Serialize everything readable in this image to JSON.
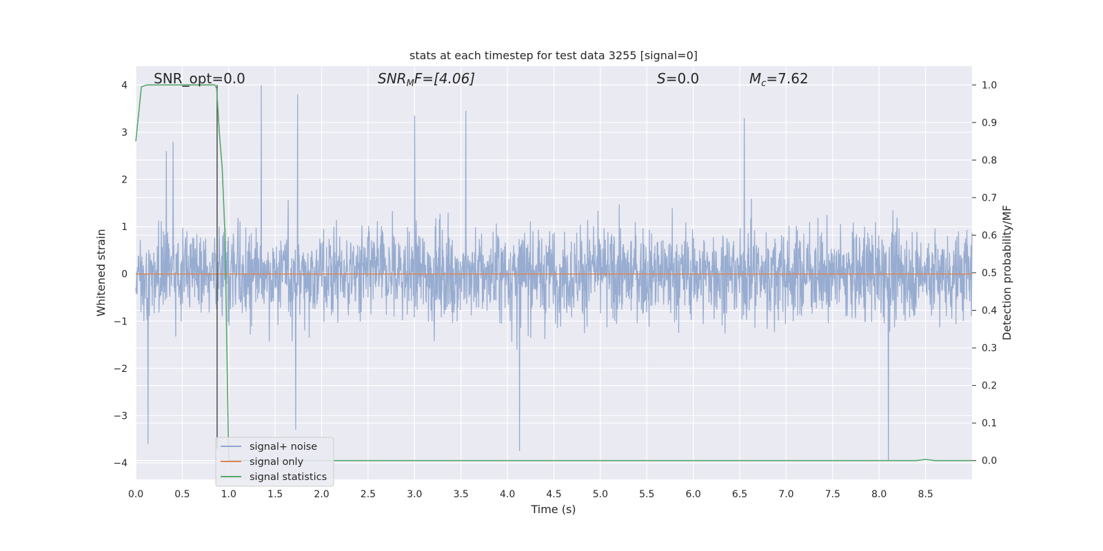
{
  "chart_data": {
    "type": "line",
    "title": "stats at each timestep for test data 3255 [signal=0]",
    "xlabel": "Time (s)",
    "ylabel_left": "Whitened strain",
    "ylabel_right": "Detection probability/MF",
    "xlim": [
      0.0,
      9.0
    ],
    "ylim_left": [
      -4.35,
      4.4
    ],
    "ylim_right": [
      -0.05,
      1.05
    ],
    "x_ticks": [
      "0.0",
      "0.5",
      "1.0",
      "1.5",
      "2.0",
      "2.5",
      "3.0",
      "3.5",
      "4.0",
      "4.5",
      "5.0",
      "5.5",
      "6.0",
      "6.5",
      "7.0",
      "7.5",
      "8.0",
      "8.5"
    ],
    "y_ticks_left": [
      "4",
      "3",
      "2",
      "1",
      "0",
      "−1",
      "−2",
      "−3",
      "−4"
    ],
    "y_ticks_right": [
      "1.0",
      "0.9",
      "0.8",
      "0.7",
      "0.6",
      "0.5",
      "0.4",
      "0.3",
      "0.2",
      "0.1",
      "0.0"
    ],
    "grid": true,
    "legend_placement": "lower-left",
    "annotations": {
      "snr_opt": "SNR_opt=0.0",
      "snr_mf_base": "SNR",
      "snr_mf_sub": "M",
      "snr_mf_rest": "F=[4.06]",
      "s_sym": "S",
      "s_val": "=0.0",
      "mc_sym": "M",
      "mc_sub": "c",
      "mc_val": "=7.62"
    },
    "marker_line_x": 0.875,
    "series": [
      {
        "name": "signal+ noise",
        "color": "#8ea5cc",
        "axis": "left",
        "description_points": {
          "x_range": [
            0.0,
            9.0
          ],
          "typical_abs_envelope": 1.6,
          "notable_peaks": [
            {
              "x": 0.33,
              "y": 2.6
            },
            {
              "x": 0.4,
              "y": 2.8
            },
            {
              "x": 1.35,
              "y": 4.0
            },
            {
              "x": 1.74,
              "y": 3.8
            },
            {
              "x": 3.0,
              "y": 3.35
            },
            {
              "x": 3.55,
              "y": 3.45
            },
            {
              "x": 6.55,
              "y": 3.3
            },
            {
              "x": 0.13,
              "y": -3.6
            },
            {
              "x": 4.13,
              "y": -3.75
            },
            {
              "x": 8.1,
              "y": -3.95
            },
            {
              "x": 1.72,
              "y": -3.3
            }
          ]
        }
      },
      {
        "name": "signal only",
        "color": "#dd8452",
        "axis": "left",
        "x": [
          0.0,
          9.0
        ],
        "y": [
          0.0,
          0.0
        ]
      },
      {
        "name": "signal statistics",
        "color": "#55a868",
        "axis": "right",
        "x": [
          0.0,
          0.06,
          0.12,
          0.2,
          0.5,
          0.85,
          0.87,
          0.9,
          0.93,
          0.96,
          1.0,
          8.0,
          8.4,
          8.5,
          8.6,
          9.0
        ],
        "y": [
          0.85,
          0.995,
          1.0,
          1.0,
          1.0,
          1.0,
          0.99,
          0.87,
          0.78,
          0.6,
          0.0,
          0.0,
          0.0,
          0.003,
          0.0,
          0.0
        ]
      }
    ]
  }
}
